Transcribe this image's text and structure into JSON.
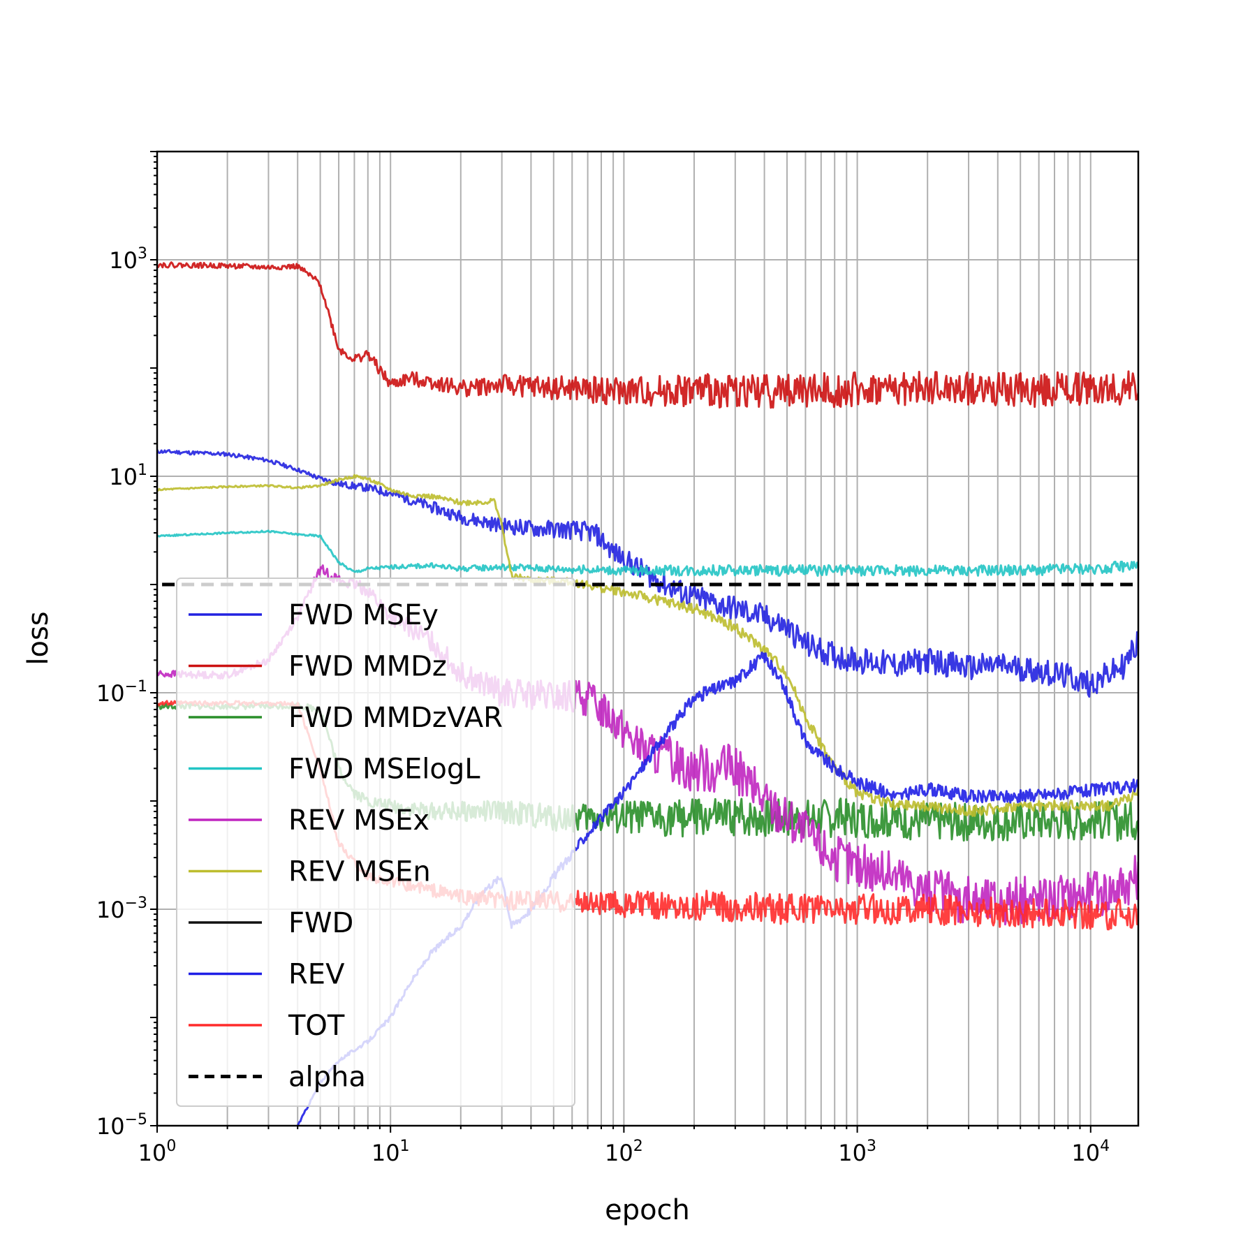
{
  "chart_data": {
    "type": "line",
    "xlabel": "epoch",
    "ylabel": "loss",
    "x_scale": "log",
    "y_scale": "log",
    "xlim": [
      1,
      16000
    ],
    "ylim": [
      1e-05,
      10000
    ],
    "grid": true,
    "legend_position": "lower-left",
    "x_ticks": [
      {
        "value": 1,
        "base": "10",
        "exp": "0"
      },
      {
        "value": 10,
        "base": "10",
        "exp": "1"
      },
      {
        "value": 100,
        "base": "10",
        "exp": "2"
      },
      {
        "value": 1000,
        "base": "10",
        "exp": "3"
      },
      {
        "value": 10000,
        "base": "10",
        "exp": "4"
      }
    ],
    "y_ticks": [
      {
        "value": 1e-05,
        "base": "10",
        "exp": "−5"
      },
      {
        "value": 0.001,
        "base": "10",
        "exp": "−3"
      },
      {
        "value": 0.1,
        "base": "10",
        "exp": "−1"
      },
      {
        "value": 10,
        "base": "10",
        "exp": "1"
      },
      {
        "value": 1000,
        "base": "10",
        "exp": "3"
      }
    ],
    "series": [
      {
        "name": "FWD MSEy",
        "color": "#2222e0",
        "dash": "",
        "width": 3,
        "x": [
          1,
          2,
          3,
          4,
          5,
          6,
          8,
          10,
          15,
          20,
          30,
          40,
          60,
          75,
          90,
          110,
          150,
          200,
          300,
          400,
          500,
          600,
          800,
          1000,
          1500,
          2000,
          3000,
          4000,
          6000,
          8000,
          10000,
          14000,
          16000
        ],
        "y": [
          17,
          16,
          14,
          11.5,
          9.5,
          8.5,
          7.8,
          7,
          5.2,
          4.2,
          3.5,
          3.3,
          3.2,
          3.0,
          2.0,
          1.5,
          1.0,
          0.75,
          0.6,
          0.5,
          0.4,
          0.28,
          0.22,
          0.2,
          0.18,
          0.2,
          0.17,
          0.18,
          0.16,
          0.14,
          0.12,
          0.18,
          0.3
        ],
        "noise": 0.12,
        "seed": 11
      },
      {
        "name": "FWD MMDz",
        "color": "#cc1111",
        "dash": "",
        "width": 3,
        "x": [
          1,
          2,
          3,
          4,
          5,
          6,
          7,
          8,
          10,
          12,
          15,
          20,
          30,
          50,
          100,
          200,
          500,
          1000,
          2000,
          5000,
          10000,
          16000
        ],
        "y": [
          900,
          880,
          850,
          870,
          600,
          150,
          120,
          135,
          70,
          80,
          75,
          65,
          70,
          65,
          60,
          62,
          62,
          63,
          64,
          63,
          64,
          65
        ],
        "noise": 0.16,
        "seed": 22
      },
      {
        "name": "FWD MMDzVAR",
        "color": "#2a8f2a",
        "dash": "",
        "width": 3,
        "x": [
          1,
          2,
          3,
          4,
          5,
          6,
          7,
          8,
          10,
          15,
          20,
          30,
          50,
          100,
          200,
          500,
          1000,
          2000,
          5000,
          10000,
          16000
        ],
        "y": [
          0.075,
          0.075,
          0.075,
          0.076,
          0.07,
          0.02,
          0.012,
          0.01,
          0.009,
          0.008,
          0.008,
          0.008,
          0.007,
          0.007,
          0.007,
          0.007,
          0.007,
          0.0065,
          0.0065,
          0.0065,
          0.0065
        ],
        "noise": 0.18,
        "seed": 33
      },
      {
        "name": "FWD MSElogL",
        "color": "#22c4c4",
        "dash": "",
        "width": 3,
        "x": [
          1,
          2,
          3,
          4,
          5,
          6,
          7,
          8,
          10,
          15,
          20,
          30,
          50,
          100,
          200,
          500,
          1000,
          2000,
          5000,
          10000,
          16000
        ],
        "y": [
          2.8,
          3.0,
          3.1,
          2.9,
          2.8,
          1.6,
          1.3,
          1.4,
          1.45,
          1.5,
          1.4,
          1.45,
          1.4,
          1.35,
          1.35,
          1.35,
          1.35,
          1.35,
          1.35,
          1.4,
          1.5
        ],
        "noise": 0.05,
        "seed": 44
      },
      {
        "name": "REV MSEx",
        "color": "#c026c0",
        "dash": "",
        "width": 3,
        "x": [
          1,
          2,
          3,
          4,
          5,
          6,
          8,
          10,
          15,
          20,
          30,
          50,
          70,
          90,
          120,
          200,
          300,
          400,
          500,
          600,
          800,
          1000,
          1500,
          2000,
          3000,
          5000,
          8000,
          12000,
          16000
        ],
        "y": [
          0.15,
          0.145,
          0.2,
          0.5,
          1.4,
          1.1,
          0.9,
          0.5,
          0.3,
          0.15,
          0.1,
          0.09,
          0.09,
          0.06,
          0.03,
          0.02,
          0.02,
          0.01,
          0.007,
          0.005,
          0.003,
          0.0025,
          0.002,
          0.0015,
          0.0012,
          0.0012,
          0.0013,
          0.0015,
          0.002
        ],
        "noise": 0.22,
        "seed": 55
      },
      {
        "name": "REV MSEn",
        "color": "#bdbd2e",
        "dash": "",
        "width": 3,
        "x": [
          1,
          2,
          3,
          4,
          5,
          6,
          7,
          8,
          10,
          12,
          15,
          20,
          25,
          28,
          30,
          33,
          40,
          60,
          100,
          200,
          300,
          400,
          500,
          600,
          800,
          1000,
          1500,
          2000,
          3000,
          5000,
          8000,
          12000,
          16000
        ],
        "y": [
          7.5,
          8.0,
          8.2,
          7.8,
          8.2,
          9.3,
          10,
          9.5,
          7.5,
          6.7,
          6.5,
          5.7,
          5.8,
          5.9,
          3.5,
          1.2,
          1.1,
          1.05,
          0.85,
          0.6,
          0.4,
          0.25,
          0.15,
          0.06,
          0.02,
          0.012,
          0.009,
          0.009,
          0.008,
          0.009,
          0.009,
          0.009,
          0.012
        ],
        "noise": 0.05,
        "seed": 66
      },
      {
        "name": "FWD",
        "color": "#111111",
        "dash": "",
        "width": 3,
        "x": [],
        "y": [],
        "noise": 0,
        "seed": 77
      },
      {
        "name": "REV",
        "color": "#1f1fe6",
        "dash": "",
        "width": 3,
        "x": [
          4,
          5,
          6,
          7,
          8,
          10,
          12,
          15,
          20,
          25,
          30,
          33,
          40,
          50,
          70,
          100,
          150,
          200,
          300,
          400,
          500,
          600,
          800,
          1000,
          1500,
          2000,
          3000,
          5000,
          8000,
          12000,
          16000
        ],
        "y": [
          1e-05,
          2.5e-05,
          4e-05,
          5e-05,
          6e-05,
          0.0001,
          0.0002,
          0.0004,
          0.0007,
          0.0015,
          0.002,
          0.0007,
          0.001,
          0.002,
          0.005,
          0.012,
          0.04,
          0.09,
          0.13,
          0.22,
          0.1,
          0.035,
          0.02,
          0.015,
          0.011,
          0.013,
          0.011,
          0.011,
          0.012,
          0.013,
          0.014
        ],
        "noise": 0.06,
        "seed": 88
      },
      {
        "name": "TOT",
        "color": "#ff2b2b",
        "dash": "",
        "width": 3,
        "x": [
          1,
          2,
          3,
          4,
          5,
          6,
          8,
          10,
          15,
          20,
          30,
          50,
          100,
          200,
          500,
          1000,
          2000,
          5000,
          10000,
          16000
        ],
        "y": [
          0.08,
          0.08,
          0.08,
          0.078,
          0.02,
          0.004,
          0.002,
          0.0018,
          0.0015,
          0.0013,
          0.0012,
          0.0012,
          0.0011,
          0.0011,
          0.001,
          0.001,
          0.001,
          0.0009,
          0.0009,
          0.0009
        ],
        "noise": 0.14,
        "seed": 99
      },
      {
        "name": "alpha",
        "color": "#000000",
        "dash": "18,10",
        "width": 5,
        "x": [
          1.05,
          16000
        ],
        "y": [
          1.0,
          1.0
        ],
        "noise": 0,
        "seed": 0
      }
    ]
  }
}
